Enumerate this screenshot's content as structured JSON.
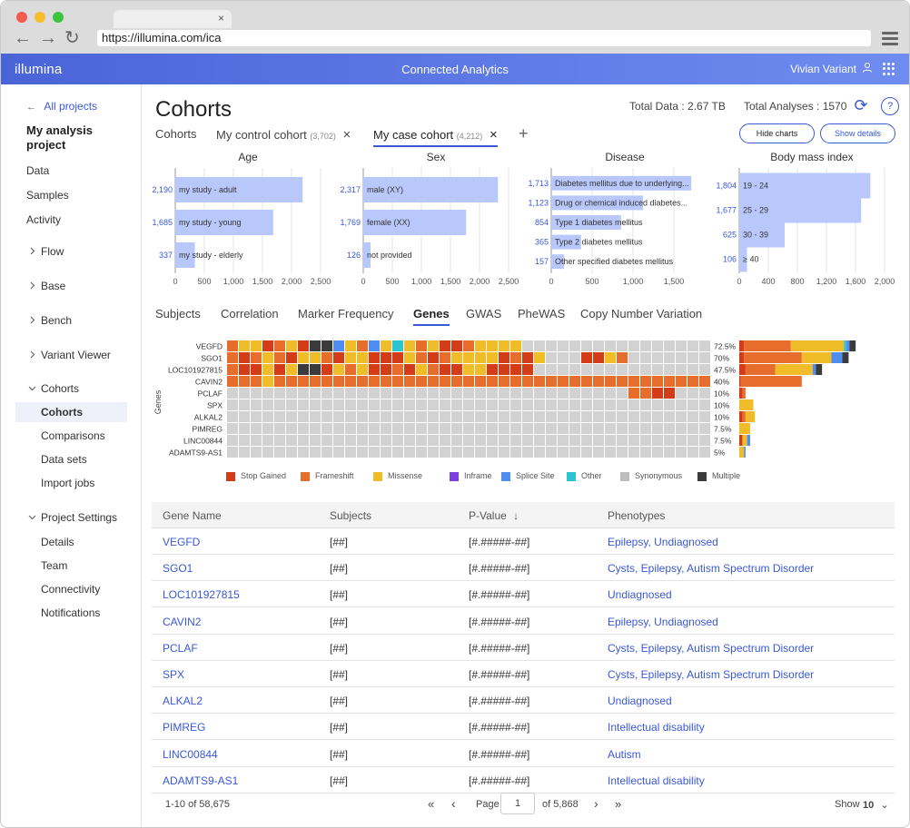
{
  "browser": {
    "url": "https://illumina.com/ica",
    "tab_close": "×",
    "back": "←",
    "forward": "→",
    "reload": "↻"
  },
  "app": {
    "logo": "illumina",
    "title": "Connected Analytics",
    "user": "Vivian Variant",
    "user_icon": "user-icon"
  },
  "sidebar": {
    "back_link": "All projects",
    "back_arrow": "←",
    "project": "My analysis project",
    "top_items": [
      "Data",
      "Samples",
      "Activity"
    ],
    "groups": [
      {
        "label": "Flow"
      },
      {
        "label": "Base"
      },
      {
        "label": "Bench"
      },
      {
        "label": "Variant Viewer"
      }
    ],
    "cohorts_group": "Cohorts",
    "cohorts_items": [
      "Cohorts",
      "Comparisons",
      "Data sets",
      "Import jobs"
    ],
    "settings_group": "Project Settings",
    "settings_items": [
      "Details",
      "Team",
      "Connectivity",
      "Notifications"
    ]
  },
  "header": {
    "title": "Cohorts",
    "total_data": "Total Data : 2.67 TB",
    "total_analyses": "Total Analyses : 1570",
    "help": "?",
    "refresh": "⟳"
  },
  "cohort_tabs": [
    {
      "label": "Cohorts",
      "count": ""
    },
    {
      "label": "My control cohort",
      "count": "(3,702)"
    },
    {
      "label": "My case cohort",
      "count": "(4,212)"
    }
  ],
  "close_glyph": "×",
  "add_glyph": "+",
  "buttons": {
    "hide_charts": "Hide charts",
    "show_details": "Show details"
  },
  "chart_data": [
    {
      "type": "bar",
      "title": "Age",
      "categories": [
        "my study - adult",
        "my study - young",
        "my study - elderly"
      ],
      "values": [
        2190,
        1685,
        337
      ],
      "value_labels": [
        "2,190",
        "1,685",
        "337"
      ],
      "xticks": [
        "0",
        "500",
        "1,000",
        "1,500",
        "2,000",
        "2,500"
      ],
      "xlim": [
        0,
        2500
      ]
    },
    {
      "type": "bar",
      "title": "Sex",
      "categories": [
        "male (XY)",
        "female (XX)",
        "not provided"
      ],
      "values": [
        2317,
        1769,
        126
      ],
      "value_labels": [
        "2,317",
        "1,769",
        "126"
      ],
      "xticks": [
        "0",
        "500",
        "1,000",
        "1,500",
        "2,000",
        "2,500"
      ],
      "xlim": [
        0,
        2500
      ]
    },
    {
      "type": "bar",
      "title": "Disease",
      "categories": [
        "Diabetes mellitus due to underlying...",
        "Drug or chemical induced diabetes...",
        "Type 1 diabetes mellitus",
        "Type 2 diabetes mellitus",
        "Other specified diabetes mellitus"
      ],
      "values": [
        1713,
        1123,
        854,
        365,
        157
      ],
      "value_labels": [
        "1,713",
        "1,123",
        "854",
        "365",
        "157"
      ],
      "xticks": [
        "0",
        "500",
        "1,000",
        "1,500"
      ],
      "xlim": [
        0,
        1800
      ]
    },
    {
      "type": "bar",
      "title": "Body mass index",
      "categories": [
        "19 - 24",
        "25 - 29",
        "30 - 39",
        "≥ 40"
      ],
      "values": [
        1804,
        1677,
        625,
        106
      ],
      "value_labels": [
        "1,804",
        "1,677",
        "625",
        "106"
      ],
      "xticks": [
        "0",
        "400",
        "800",
        "1,200",
        "1,600",
        "2,000"
      ],
      "xlim": [
        0,
        2000
      ]
    }
  ],
  "section_tabs": [
    "Subjects",
    "Correlation",
    "Marker Frequency",
    "Genes",
    "GWAS",
    "PheWAS",
    "Copy Number Variation"
  ],
  "oncoprint": {
    "yaxis": "Genes",
    "genes": [
      "VEGFD",
      "SGO1",
      "LOC101927815",
      "CAVIN2",
      "PCLAF",
      "SPX",
      "ALKAL2",
      "PIMREG",
      "LINC00844",
      "ADAMTS9-AS1"
    ],
    "percents": [
      "72.5%",
      "70%",
      "47.5%",
      "40%",
      "10%",
      "10%",
      "10%",
      "7.5%",
      "7.5%",
      "5%"
    ],
    "rows": [
      "FMMSFMSKKPMFPMCMFMSSFMMMM...................",
      "FSFMFSMMFSMMSSSMFSFMMMMSFSM...SSMF..........",
      "FSSMSMKKSMFMSSFSMFSSMMSSSS..................",
      "FFFMFFFFFFFFFFFFFFFFFFFFFFFFFFFFFFFFFFFFFFFFFFFFF",
      "..................................FFSS.......",
      "...........................................",
      "..........................................",
      "...............................................",
      "......................................",
      ".........................................F.K"
    ],
    "palette": {
      "S": "#d43b17",
      "F": "#e66d2c",
      "M": "#f0bd29",
      "I": "#7a3fe0",
      "P": "#4f8ef0",
      "C": "#2ec4cf",
      "Y": "#bdbdbd",
      "K": "#3b3b3b",
      ".": "#d2d2d2"
    },
    "summary": [
      {
        "S": 0.03,
        "F": 0.3,
        "M": 0.34,
        "C": 0.015,
        "P": 0.02,
        "K": 0.04
      },
      {
        "S": 0.03,
        "F": 0.37,
        "M": 0.19,
        "P": 0.07,
        "K": 0.04
      },
      {
        "S": 0.04,
        "F": 0.19,
        "M": 0.24,
        "P": 0.02,
        "K": 0.04
      },
      {
        "S": 0.01,
        "F": 0.39
      },
      {
        "S": 0.02,
        "F": 0.02
      },
      {
        "M": 0.09
      },
      {
        "S": 0.02,
        "F": 0.02,
        "M": 0.06
      },
      {
        "M": 0.07
      },
      {
        "S": 0.02,
        "M": 0.03,
        "P": 0.02
      },
      {
        "M": 0.03,
        "P": 0.01
      }
    ]
  },
  "legend": [
    {
      "label": "Stop Gained",
      "color": "#d43b17"
    },
    {
      "label": "Frameshift",
      "color": "#e66d2c"
    },
    {
      "label": "Missense",
      "color": "#f0bd29"
    },
    {
      "label": "Inframe",
      "color": "#7a3fe0"
    },
    {
      "label": "Splice Site",
      "color": "#4f8ef0"
    },
    {
      "label": "Other",
      "color": "#2ec4cf"
    },
    {
      "label": "Synonymous",
      "color": "#bdbdbd"
    },
    {
      "label": "Multiple",
      "color": "#3b3b3b"
    }
  ],
  "table": {
    "headers": [
      "Gene Name",
      "Subjects",
      "P-Value",
      "Phenotypes"
    ],
    "sort_glyph": "↓",
    "rows": [
      {
        "gene": "VEGFD",
        "subjects": "[##]",
        "p": "[#.#####-##]",
        "phenotypes": "Epilepsy, Undiagnosed"
      },
      {
        "gene": "SGO1",
        "subjects": "[##]",
        "p": "[#.#####-##]",
        "phenotypes": "Cysts, Epilepsy, Autism Spectrum Disorder"
      },
      {
        "gene": "LOC101927815",
        "subjects": "[##]",
        "p": "[#.#####-##]",
        "phenotypes": "Undiagnosed"
      },
      {
        "gene": "CAVIN2",
        "subjects": "[##]",
        "p": "[#.#####-##]",
        "phenotypes": "Epilepsy, Undiagnosed"
      },
      {
        "gene": "PCLAF",
        "subjects": "[##]",
        "p": "[#.#####-##]",
        "phenotypes": "Cysts, Epilepsy, Autism Spectrum Disorder"
      },
      {
        "gene": "SPX",
        "subjects": "[##]",
        "p": "[#.#####-##]",
        "phenotypes": "Cysts, Epilepsy, Autism Spectrum Disorder"
      },
      {
        "gene": "ALKAL2",
        "subjects": "[##]",
        "p": "[#.#####-##]",
        "phenotypes": "Undiagnosed"
      },
      {
        "gene": "PIMREG",
        "subjects": "[##]",
        "p": "[#.#####-##]",
        "phenotypes": "Intellectual disability"
      },
      {
        "gene": "LINC00844",
        "subjects": "[##]",
        "p": "[#.#####-##]",
        "phenotypes": "Autism"
      },
      {
        "gene": "ADAMTS9-AS1",
        "subjects": "[##]",
        "p": "[#.#####-##]",
        "phenotypes": "Intellectual disability"
      }
    ]
  },
  "pagination": {
    "range": "1-10 of 58,675",
    "first": "«",
    "prev": "‹",
    "page_label": "Page",
    "page": "1",
    "of": "of 5,868",
    "next": "›",
    "last": "»",
    "show_label": "Show",
    "show_value": "10",
    "chevron": "⌄"
  }
}
